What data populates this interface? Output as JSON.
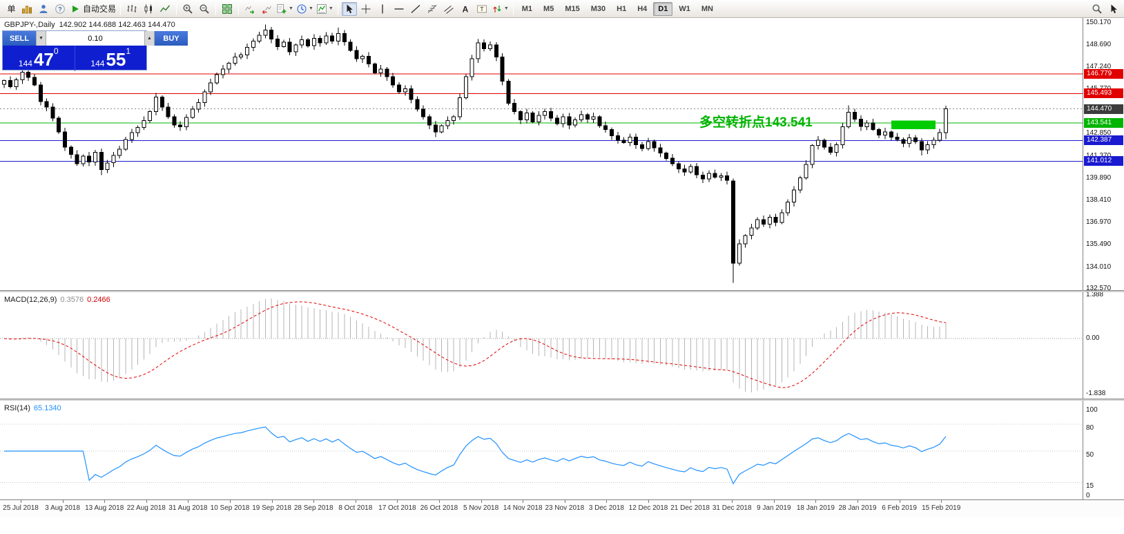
{
  "toolbar": {
    "items": [
      {
        "name": "new-order-button",
        "label": "单"
      },
      {
        "name": "quotes-icon",
        "icon": "quotes"
      },
      {
        "name": "market-watch-icon",
        "icon": "person"
      },
      {
        "name": "help-icon",
        "icon": "help"
      },
      {
        "name": "autotrading-button",
        "icon": "play",
        "label": "自动交易"
      },
      {
        "sep": true
      },
      {
        "name": "bar-chart-type-icon",
        "icon": "bars"
      },
      {
        "name": "candlestick-chart-type-icon",
        "icon": "candles"
      },
      {
        "name": "line-chart-type-icon",
        "icon": "line"
      },
      {
        "sep": true
      },
      {
        "name": "zoom-in-icon",
        "icon": "zoomin"
      },
      {
        "name": "zoom-out-icon",
        "icon": "zoomout"
      },
      {
        "sep": true
      },
      {
        "name": "tile-windows-icon",
        "icon": "tile"
      },
      {
        "sep": true
      },
      {
        "name": "auto-scroll-icon",
        "icon": "autoscroll"
      },
      {
        "name": "chart-shift-icon",
        "icon": "shift"
      },
      {
        "name": "new-chart-icon",
        "icon": "newchart",
        "dd": true
      },
      {
        "name": "periods-icon",
        "icon": "clock",
        "dd": true
      },
      {
        "name": "indicators-icon",
        "icon": "indicators",
        "dd": true
      },
      {
        "sep": true
      },
      {
        "name": "cursor-tool-icon",
        "icon": "cursor",
        "active": true
      },
      {
        "name": "crosshair-tool-icon",
        "icon": "crosshair"
      },
      {
        "name": "vertical-line-tool-icon",
        "icon": "vline"
      },
      {
        "name": "horizontal-line-tool-icon",
        "icon": "hline"
      },
      {
        "name": "trendline-tool-icon",
        "icon": "trend"
      },
      {
        "name": "fibonacci-tool-icon",
        "icon": "fib"
      },
      {
        "name": "channel-tool-icon",
        "icon": "channel"
      },
      {
        "name": "text-tool-icon",
        "icon": "textA"
      },
      {
        "name": "label-tool-icon",
        "icon": "labelT"
      },
      {
        "name": "arrows-tool-icon",
        "icon": "arrows",
        "dd": true
      },
      {
        "sep": true
      }
    ],
    "timeframes": [
      "M1",
      "M5",
      "M15",
      "M30",
      "H1",
      "H4",
      "D1",
      "W1",
      "MN"
    ],
    "active_timeframe": "D1",
    "right_items": [
      {
        "name": "search-icon",
        "icon": "search"
      },
      {
        "name": "pointer-icon",
        "icon": "cursor"
      }
    ]
  },
  "chart": {
    "title_symbol": "GBPJPY-,Daily",
    "title_ohlc": "142.902 144.688 142.463 144.470"
  },
  "trade_panel": {
    "sell_label": "SELL",
    "buy_label": "BUY",
    "volume": "0.10",
    "bid": {
      "prefix": "144",
      "big": "47",
      "sup": "0"
    },
    "ask": {
      "prefix": "144",
      "big": "55",
      "sup": "1"
    }
  },
  "annotation": {
    "text": "多空转折点143.541",
    "color": "#00b400"
  },
  "levels": [
    {
      "price": 146.779,
      "label": "146.779",
      "color": "#e00000"
    },
    {
      "price": 145.493,
      "label": "145.493",
      "color": "#e00000"
    },
    {
      "price": 143.541,
      "label": "143.541",
      "color": "#00b400"
    },
    {
      "price": 142.387,
      "label": "142.387",
      "color": "#1a1ad0"
    },
    {
      "price": 141.012,
      "label": "141.012",
      "color": "#1a1ad0"
    }
  ],
  "current_price": {
    "value": 144.47,
    "label": "144.470",
    "bg": "#3c3c3c"
  },
  "rectangle": {
    "x1_bar": 146,
    "x2_bar": 153.3,
    "price_top": 143.7,
    "price_bottom": 143.12,
    "color": "#00cc00"
  },
  "axis": {
    "price_max": "150.170",
    "price_min": "132.570",
    "price_ticks": [
      "150.170",
      "148.690",
      "147.240",
      "145.770",
      "144.310",
      "142.850",
      "141.370",
      "139.890",
      "138.410",
      "136.970",
      "135.490",
      "134.010",
      "132.570"
    ],
    "dates": [
      "25 Jul 2018",
      "3 Aug 2018",
      "13 Aug 2018",
      "22 Aug 2018",
      "31 Aug 2018",
      "10 Sep 2018",
      "19 Sep 2018",
      "28 Sep 2018",
      "8 Oct 2018",
      "17 Oct 2018",
      "26 Oct 2018",
      "5 Nov 2018",
      "14 Nov 2018",
      "23 Nov 2018",
      "3 Dec 2018",
      "12 Dec 2018",
      "21 Dec 2018",
      "31 Dec 2018",
      "9 Jan 2019",
      "18 Jan 2019",
      "28 Jan 2019",
      "6 Feb 2019",
      "15 Feb 2019"
    ]
  },
  "macd": {
    "label": "MACD(12,26,9)",
    "main_value": "0.3576",
    "signal_value": "0.2466",
    "scale_top": "1.388",
    "scale_zero": "0.00",
    "scale_bottom": "-1.838"
  },
  "rsi": {
    "label": "RSI(14)",
    "value": "65.1340",
    "scale": [
      "100",
      "80",
      "50",
      "15",
      "0"
    ],
    "levels": [
      80,
      50,
      15
    ]
  },
  "chart_data": {
    "type": "candlestick",
    "symbol": "GBPJPY-",
    "timeframe": "Daily",
    "x_range": [
      "25 Jul 2018",
      "19 Feb 2019"
    ],
    "price_range": [
      132.57,
      150.17
    ],
    "last_ohlc": {
      "open": 142.902,
      "high": 144.688,
      "low": 142.463,
      "close": 144.47
    },
    "first_open": 146.1,
    "closes": [
      146.35,
      145.95,
      146.4,
      146.9,
      146.55,
      146.05,
      144.95,
      144.6,
      143.85,
      142.95,
      141.95,
      141.45,
      140.85,
      141.35,
      140.95,
      141.6,
      140.45,
      140.9,
      141.4,
      141.8,
      142.45,
      142.9,
      143.25,
      143.7,
      144.3,
      145.25,
      144.6,
      143.95,
      143.4,
      143.3,
      143.9,
      144.45,
      144.9,
      145.6,
      146.2,
      146.75,
      147.1,
      147.5,
      147.9,
      148.05,
      148.55,
      148.95,
      149.35,
      149.7,
      149.1,
      148.6,
      148.9,
      148.25,
      148.7,
      149.05,
      148.65,
      149.15,
      148.85,
      149.3,
      148.95,
      149.45,
      148.9,
      148.35,
      147.8,
      147.95,
      147.45,
      146.85,
      147.1,
      146.6,
      146.05,
      145.6,
      145.8,
      145.1,
      144.45,
      143.95,
      143.4,
      142.95,
      143.35,
      143.7,
      143.95,
      145.2,
      146.6,
      147.8,
      148.85,
      148.45,
      148.7,
      147.9,
      146.3,
      144.85,
      144.3,
      143.75,
      144.2,
      143.6,
      144.05,
      144.3,
      143.85,
      143.5,
      143.95,
      143.4,
      143.75,
      144.1,
      143.8,
      143.95,
      143.35,
      143.1,
      142.7,
      142.4,
      142.25,
      142.6,
      142.1,
      141.85,
      142.3,
      141.9,
      141.55,
      141.2,
      140.85,
      140.5,
      140.3,
      140.65,
      140.1,
      139.85,
      140.2,
      139.95,
      140.05,
      139.75,
      134.25,
      135.55,
      136.1,
      136.6,
      137.15,
      136.85,
      137.3,
      136.95,
      137.6,
      138.3,
      139.1,
      139.9,
      140.8,
      142.05,
      142.4,
      141.95,
      141.6,
      142.1,
      143.3,
      144.25,
      143.8,
      143.3,
      143.55,
      143.1,
      142.75,
      142.95,
      142.6,
      142.45,
      142.2,
      142.55,
      142.3,
      141.75,
      142.1,
      142.4,
      142.9,
      144.47
    ],
    "overrides": {
      "3": {
        "h": 147.25
      },
      "16": {
        "l": 140.1
      },
      "43": {
        "h": 150.05
      },
      "55": {
        "h": 149.85
      },
      "71": {
        "l": 142.6
      },
      "78": {
        "h": 149.1
      },
      "120": {
        "o": 139.7,
        "h": 139.85,
        "l": 132.95
      },
      "139": {
        "h": 144.7
      },
      "151": {
        "l": 141.4
      },
      "155": {
        "o": 142.902,
        "h": 144.688,
        "l": 142.463
      }
    },
    "indicators": [
      {
        "name": "MACD",
        "params": [
          12,
          26,
          9
        ],
        "shown_values": [
          0.3576,
          0.2466
        ]
      },
      {
        "name": "RSI",
        "params": [
          14
        ],
        "shown_value": 65.134
      }
    ]
  }
}
